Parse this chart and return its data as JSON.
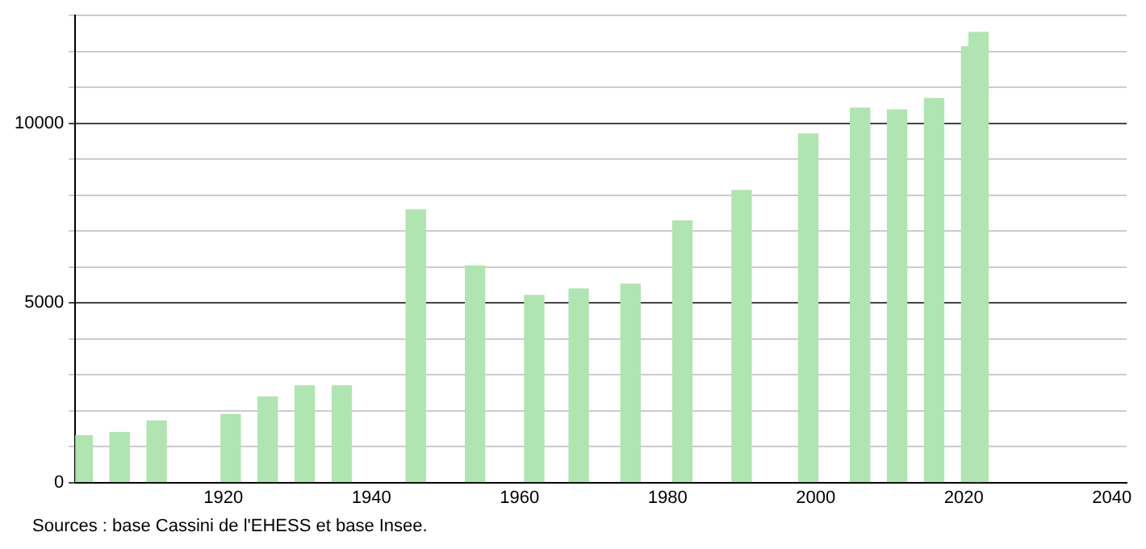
{
  "chart_data": {
    "type": "bar",
    "x": [
      1901,
      1906,
      1911,
      1921,
      1926,
      1931,
      1936,
      1946,
      1954,
      1962,
      1968,
      1975,
      1982,
      1990,
      1999,
      2006,
      2011,
      2016,
      2021,
      2022
    ],
    "values": [
      1300,
      1390,
      1710,
      1890,
      2380,
      2690,
      2690,
      7590,
      6030,
      5210,
      5390,
      5520,
      7280,
      8130,
      9700,
      10420,
      10370,
      10690,
      12130,
      12530
    ],
    "color": "#b0e4b0",
    "xlim": [
      1900,
      2042
    ],
    "xticks": [
      1920,
      1940,
      1960,
      1980,
      2000,
      2020,
      2040
    ],
    "ylim": [
      0,
      13000
    ],
    "yticks": [
      0,
      {
        "value": 1000,
        "label": null
      },
      {
        "value": 2000,
        "label": null
      },
      {
        "value": 3000,
        "label": null
      },
      {
        "value": 4000,
        "label": null
      },
      5000,
      {
        "value": 6000,
        "label": null
      },
      {
        "value": 7000,
        "label": null
      },
      {
        "value": 8000,
        "label": null
      },
      {
        "value": 9000,
        "label": null
      },
      10000,
      {
        "value": 11000,
        "label": null
      },
      {
        "value": 12000,
        "label": null
      },
      {
        "value": 13000,
        "label": null
      }
    ],
    "grid": "y",
    "annotations": [
      "Sources : base Cassini de l'EHESS et base Insee."
    ]
  }
}
